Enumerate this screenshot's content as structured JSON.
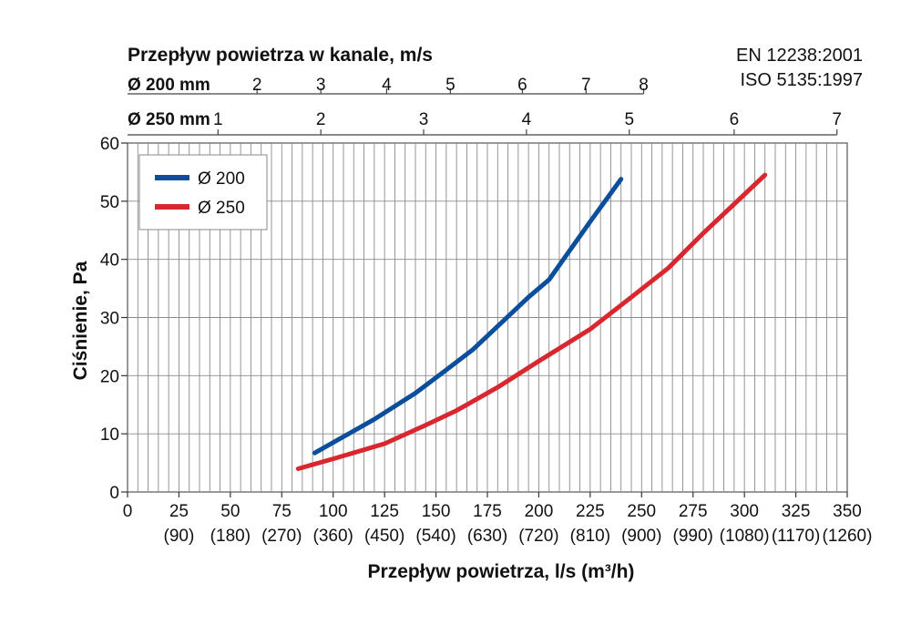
{
  "chart_data": {
    "type": "line",
    "title": "",
    "standards": [
      "EN 12238:2001",
      "ISO 5135:1997"
    ],
    "xlabel": "Przepływ powietrza, l/s (m³/h)",
    "ylabel": "Ciśnienie, Pa",
    "xlim": [
      0,
      350
    ],
    "ylim": [
      0,
      60
    ],
    "x_ticks": [
      0,
      25,
      50,
      75,
      100,
      125,
      150,
      175,
      200,
      225,
      250,
      275,
      300,
      325,
      350
    ],
    "x_tick_labels": [
      "0",
      "25",
      "50",
      "75",
      "100",
      "125",
      "150",
      "175",
      "200",
      "225",
      "250",
      "275",
      "300",
      "325",
      "350"
    ],
    "x_secondary_labels": [
      "",
      "(90)",
      "(180)",
      "(270)",
      "(360)",
      "(450)",
      "(540)",
      "(630)",
      "(720)",
      "(810)",
      "(900)",
      "(990)",
      "(1080)",
      "(1170)",
      "(1260)"
    ],
    "y_ticks": [
      0,
      10,
      20,
      30,
      40,
      50,
      60
    ],
    "y_tick_labels": [
      "0",
      "10",
      "20",
      "30",
      "40",
      "50",
      "60"
    ],
    "grid": true,
    "legend_position": "top-left",
    "top_axis_title": "Przepływ powietrza w kanale, m/s",
    "top_axes": [
      {
        "label": "Ø 200 mm",
        "ticks": [
          {
            "text": "2",
            "flow": 63
          },
          {
            "text": "3",
            "flow": 94
          },
          {
            "text": "4",
            "flow": 126
          },
          {
            "text": "5",
            "flow": 157
          },
          {
            "text": "6",
            "flow": 192
          },
          {
            "text": "7",
            "flow": 223
          },
          {
            "text": "8",
            "flow": 251
          }
        ]
      },
      {
        "label": "Ø 250 mm",
        "ticks": [
          {
            "text": "1",
            "flow": 44
          },
          {
            "text": "2",
            "flow": 94
          },
          {
            "text": "3",
            "flow": 144
          },
          {
            "text": "4",
            "flow": 194
          },
          {
            "text": "5",
            "flow": 244
          },
          {
            "text": "6",
            "flow": 295
          },
          {
            "text": "7",
            "flow": 345
          }
        ]
      }
    ],
    "series": [
      {
        "name": "Ø 200",
        "color": "#0b4f9c",
        "x": [
          91,
          100,
          120,
          140,
          155,
          168,
          180,
          195,
          205,
          215,
          225,
          240
        ],
        "y": [
          6.7,
          8.5,
          12.5,
          17,
          21,
          24.5,
          28.5,
          33.5,
          36.5,
          41.5,
          46.5,
          53.8
        ]
      },
      {
        "name": "Ø 250",
        "color": "#d9262f",
        "x": [
          83,
          100,
          125,
          145,
          160,
          180,
          200,
          225,
          245,
          263,
          280,
          295,
          310
        ],
        "y": [
          4,
          5.7,
          8.3,
          11.5,
          14,
          18,
          22.5,
          28,
          33.5,
          38.5,
          44.5,
          49.5,
          54.5
        ]
      }
    ]
  }
}
